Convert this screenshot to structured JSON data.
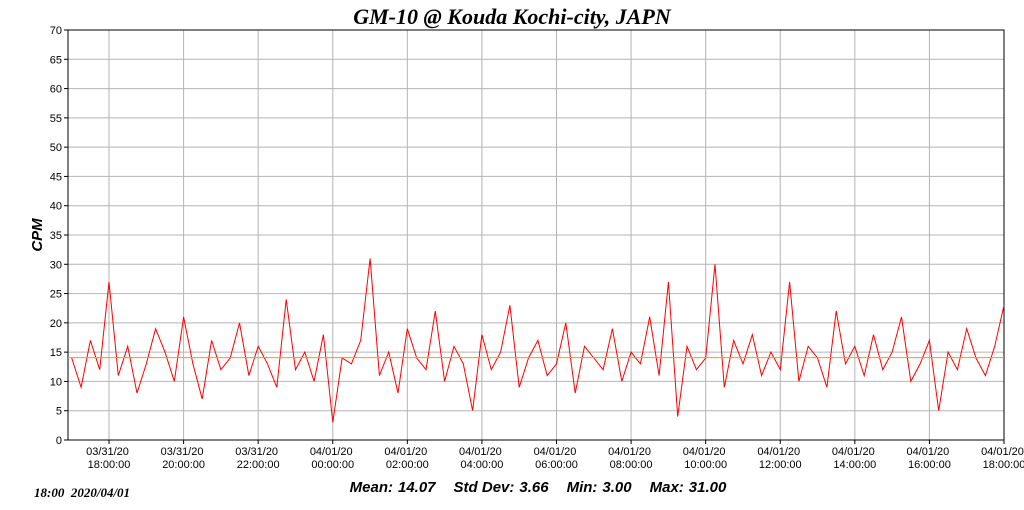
{
  "chart_data": {
    "type": "line",
    "title": "GM-10 @ Kouda Kochi-city, JAPN",
    "y_label": "CPM",
    "stamp": "18:00  2020/04/01",
    "stats": [
      {
        "name": "Mean:",
        "value": 14.07
      },
      {
        "name": "Std Dev:",
        "value": 3.66
      },
      {
        "name": "Min:",
        "value": 3,
        "label": "3.00"
      },
      {
        "name": "Max:",
        "value": 31,
        "label": "31.00"
      }
    ],
    "grid": true,
    "ylim": [
      0,
      70
    ],
    "yticks": [
      0,
      5,
      10,
      15,
      20,
      25,
      30,
      35,
      40,
      45,
      50,
      55,
      60,
      65,
      70
    ],
    "xlim": [
      "03/31/20 16:54:00",
      "04/01/20 18:00:00"
    ],
    "xticks": [
      "03/31/20 18:00:00",
      "03/31/20 20:00:00",
      "03/31/20 22:00:00",
      "04/01/20 00:00:00",
      "04/01/20 02:00:00",
      "04/01/20 04:00:00",
      "04/01/20 06:00:00",
      "04/01/20 08:00:00",
      "04/01/20 10:00:00",
      "04/01/20 12:00:00",
      "04/01/20 14:00:00",
      "04/01/20 16:00:00",
      "04/01/20 18:00:00"
    ],
    "x": [
      "03/31/20 17:00:00",
      "03/31/20 17:15:00",
      "03/31/20 17:30:00",
      "03/31/20 17:45:00",
      "03/31/20 18:00:00",
      "03/31/20 18:15:00",
      "03/31/20 18:30:00",
      "03/31/20 18:45:00",
      "03/31/20 19:00:00",
      "03/31/20 19:15:00",
      "03/31/20 19:30:00",
      "03/31/20 19:45:00",
      "03/31/20 20:00:00",
      "03/31/20 20:15:00",
      "03/31/20 20:30:00",
      "03/31/20 20:45:00",
      "03/31/20 21:00:00",
      "03/31/20 21:15:00",
      "03/31/20 21:30:00",
      "03/31/20 21:45:00",
      "03/31/20 22:00:00",
      "03/31/20 22:15:00",
      "03/31/20 22:30:00",
      "03/31/20 22:45:00",
      "03/31/20 23:00:00",
      "03/31/20 23:15:00",
      "03/31/20 23:30:00",
      "03/31/20 23:45:00",
      "04/01/20 00:00:00",
      "04/01/20 00:15:00",
      "04/01/20 00:30:00",
      "04/01/20 00:45:00",
      "04/01/20 01:00:00",
      "04/01/20 01:15:00",
      "04/01/20 01:30:00",
      "04/01/20 01:45:00",
      "04/01/20 02:00:00",
      "04/01/20 02:15:00",
      "04/01/20 02:30:00",
      "04/01/20 02:45:00",
      "04/01/20 03:00:00",
      "04/01/20 03:15:00",
      "04/01/20 03:30:00",
      "04/01/20 03:45:00",
      "04/01/20 04:00:00",
      "04/01/20 04:15:00",
      "04/01/20 04:30:00",
      "04/01/20 04:45:00",
      "04/01/20 05:00:00",
      "04/01/20 05:15:00",
      "04/01/20 05:30:00",
      "04/01/20 05:45:00",
      "04/01/20 06:00:00",
      "04/01/20 06:15:00",
      "04/01/20 06:30:00",
      "04/01/20 06:45:00",
      "04/01/20 07:00:00",
      "04/01/20 07:15:00",
      "04/01/20 07:30:00",
      "04/01/20 07:45:00",
      "04/01/20 08:00:00",
      "04/01/20 08:15:00",
      "04/01/20 08:30:00",
      "04/01/20 08:45:00",
      "04/01/20 09:00:00",
      "04/01/20 09:15:00",
      "04/01/20 09:30:00",
      "04/01/20 09:45:00",
      "04/01/20 10:00:00",
      "04/01/20 10:15:00",
      "04/01/20 10:30:00",
      "04/01/20 10:45:00",
      "04/01/20 11:00:00",
      "04/01/20 11:15:00",
      "04/01/20 11:30:00",
      "04/01/20 11:45:00",
      "04/01/20 12:00:00",
      "04/01/20 12:15:00",
      "04/01/20 12:30:00",
      "04/01/20 12:45:00",
      "04/01/20 13:00:00",
      "04/01/20 13:15:00",
      "04/01/20 13:30:00",
      "04/01/20 13:45:00",
      "04/01/20 14:00:00",
      "04/01/20 14:15:00",
      "04/01/20 14:30:00",
      "04/01/20 14:45:00",
      "04/01/20 15:00:00",
      "04/01/20 15:15:00",
      "04/01/20 15:30:00",
      "04/01/20 15:45:00",
      "04/01/20 16:00:00",
      "04/01/20 16:15:00",
      "04/01/20 16:30:00",
      "04/01/20 16:45:00",
      "04/01/20 17:00:00",
      "04/01/20 17:15:00",
      "04/01/20 17:30:00",
      "04/01/20 17:45:00",
      "04/01/20 18:00:00"
    ],
    "series": [
      {
        "name": "CPM",
        "color": "#ff0000",
        "values": [
          14,
          9,
          17,
          12,
          27,
          11,
          16,
          8,
          13,
          19,
          15,
          10,
          21,
          13,
          7,
          17,
          12,
          14,
          20,
          11,
          16,
          13,
          9,
          24,
          12,
          15,
          10,
          18,
          3,
          14,
          13,
          17,
          31,
          11,
          15,
          8,
          19,
          14,
          12,
          22,
          10,
          16,
          13,
          5,
          18,
          12,
          15,
          23,
          9,
          14,
          17,
          11,
          13,
          20,
          8,
          16,
          14,
          12,
          19,
          10,
          15,
          13,
          21,
          11,
          27,
          4,
          16,
          12,
          14,
          30,
          9,
          17,
          13,
          18,
          11,
          15,
          12,
          27,
          10,
          16,
          14,
          9,
          22,
          13,
          16,
          11,
          18,
          12,
          15,
          21,
          10,
          13,
          17,
          5,
          15,
          12,
          19,
          14,
          11,
          16,
          23
        ]
      }
    ],
    "mean_color": "#ff9900"
  }
}
